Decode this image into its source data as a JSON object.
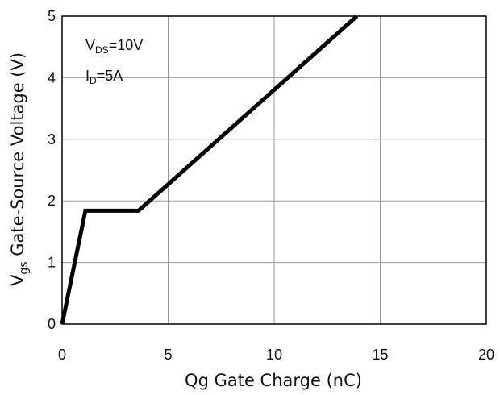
{
  "chart_data": {
    "type": "line",
    "xlabel": "Qg Gate Charge (nC)",
    "ylabel": {
      "main": "V",
      "sub": "gs",
      "rest": " Gate-Source Voltage (V)"
    },
    "xlim": [
      0,
      20
    ],
    "ylim": [
      0,
      5
    ],
    "x_ticks": [
      "0",
      "5",
      "10",
      "15",
      "20"
    ],
    "y_ticks": [
      "0",
      "1",
      "2",
      "3",
      "4",
      "5"
    ],
    "grid": true,
    "annotations": [
      {
        "main": "V",
        "sub": "DS",
        "rest": "=10V"
      },
      {
        "main": "I",
        "sub": "D",
        "rest": "=5A"
      }
    ],
    "series": [
      {
        "color": "#000000",
        "x": [
          0,
          1.1,
          3.6,
          13.9
        ],
        "y": [
          0,
          1.84,
          1.84,
          5.0
        ]
      }
    ]
  }
}
